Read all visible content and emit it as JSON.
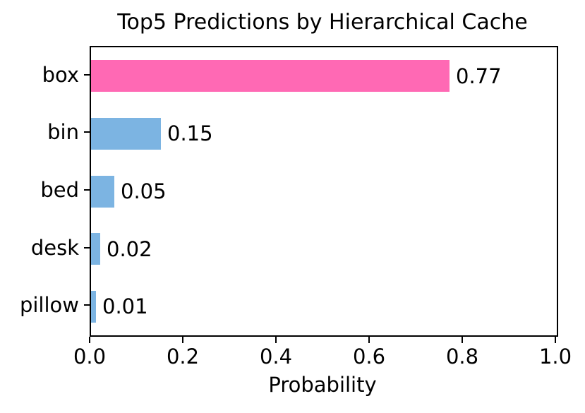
{
  "chart_data": {
    "type": "bar",
    "orientation": "horizontal",
    "title": "Top5 Predictions by Hierarchical Cache",
    "xlabel": "Probability",
    "ylabel": "",
    "categories": [
      "box",
      "bin",
      "bed",
      "desk",
      "pillow"
    ],
    "values": [
      0.77,
      0.15,
      0.05,
      0.02,
      0.01
    ],
    "value_labels": [
      "0.77",
      "0.15",
      "0.05",
      "0.02",
      "0.01"
    ],
    "bar_colors": [
      "#ff69b4",
      "#7cb4e2",
      "#7cb4e2",
      "#7cb4e2",
      "#7cb4e2"
    ],
    "xlim": [
      0.0,
      1.0
    ],
    "xticks": [
      {
        "value": 0.0,
        "label": "0.0"
      },
      {
        "value": 0.2,
        "label": "0.2"
      },
      {
        "value": 0.4,
        "label": "0.4"
      },
      {
        "value": 0.6,
        "label": "0.6"
      },
      {
        "value": 0.8,
        "label": "0.8"
      },
      {
        "value": 1.0,
        "label": "1.0"
      }
    ],
    "grid": false,
    "legend": "none",
    "spine_color": "#000000",
    "background_color": "#ffffff"
  }
}
